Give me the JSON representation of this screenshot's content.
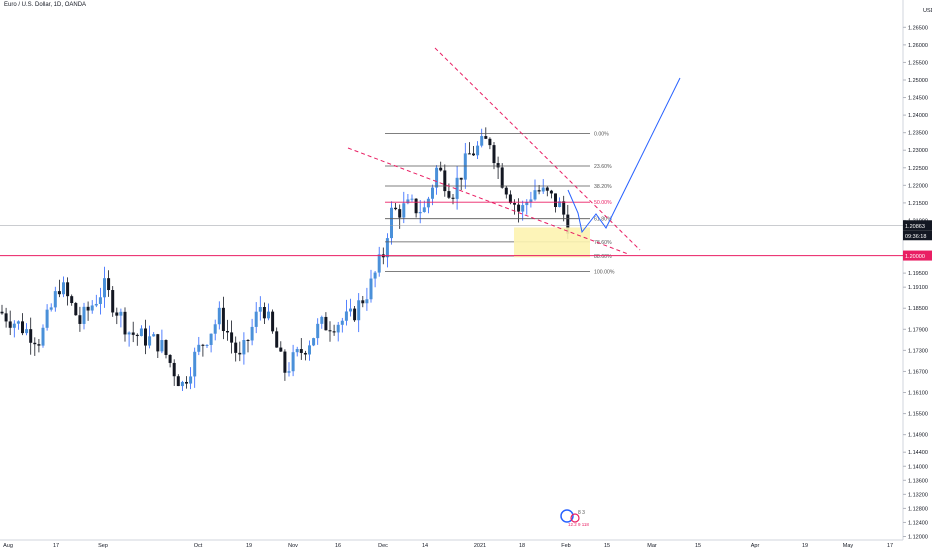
{
  "title": "Euro / U.S. Dollar, 1D, OANDA",
  "currency": "USD",
  "price_marks": {
    "last_price": "1.20863",
    "countdown": "09:36:18",
    "level": "1.20000"
  },
  "watermark": {
    "line1": "8 3",
    "line2": "12.2 9 118"
  },
  "colors": {
    "up": "#2962ff",
    "up_body": "#4a90d9",
    "down": "#131722",
    "fib": "#555555",
    "fib_50": "#e91e63",
    "trendline": "#e91e63",
    "support": "#e91e63",
    "zone": "#fdf3b0",
    "projection": "#2962ff"
  },
  "chart_data": {
    "type": "candlestick",
    "instrument": "EURUSD",
    "timeframe": "1D",
    "ylim": [
      1.119,
      1.2705
    ],
    "y_ticks": [
      "1.12000",
      "1.12400",
      "1.12800",
      "1.13200",
      "1.13600",
      "1.14000",
      "1.14400",
      "1.14900",
      "1.15500",
      "1.16100",
      "1.16700",
      "1.17300",
      "1.17900",
      "1.18500",
      "1.19100",
      "1.19500",
      "1.20000",
      "1.20500",
      "1.21000",
      "1.21500",
      "1.22000",
      "1.22500",
      "1.23000",
      "1.23500",
      "1.24000",
      "1.24500",
      "1.25000",
      "1.25500",
      "1.26000",
      "1.26500"
    ],
    "x_ticks": [
      "Aug",
      "17",
      "Sep",
      "Oct",
      "19",
      "Nov",
      "16",
      "Dec",
      "14",
      "2021",
      "18",
      "Feb",
      "15",
      "Mar",
      "15",
      "Apr",
      "19",
      "May",
      "17"
    ],
    "fib_levels": [
      {
        "label": "0.00%",
        "price": 1.2348
      },
      {
        "label": "23.60%",
        "price": 1.2255
      },
      {
        "label": "38.20%",
        "price": 1.2198
      },
      {
        "label": "50.00%",
        "price": 1.2152
      },
      {
        "label": "61.80%",
        "price": 1.2105
      },
      {
        "label": "78.60%",
        "price": 1.2039
      },
      {
        "label": "88.60%",
        "price": 1.1999
      },
      {
        "label": "100.00%",
        "price": 1.1955
      }
    ],
    "support_level": 1.2,
    "last_price": 1.20863
  }
}
